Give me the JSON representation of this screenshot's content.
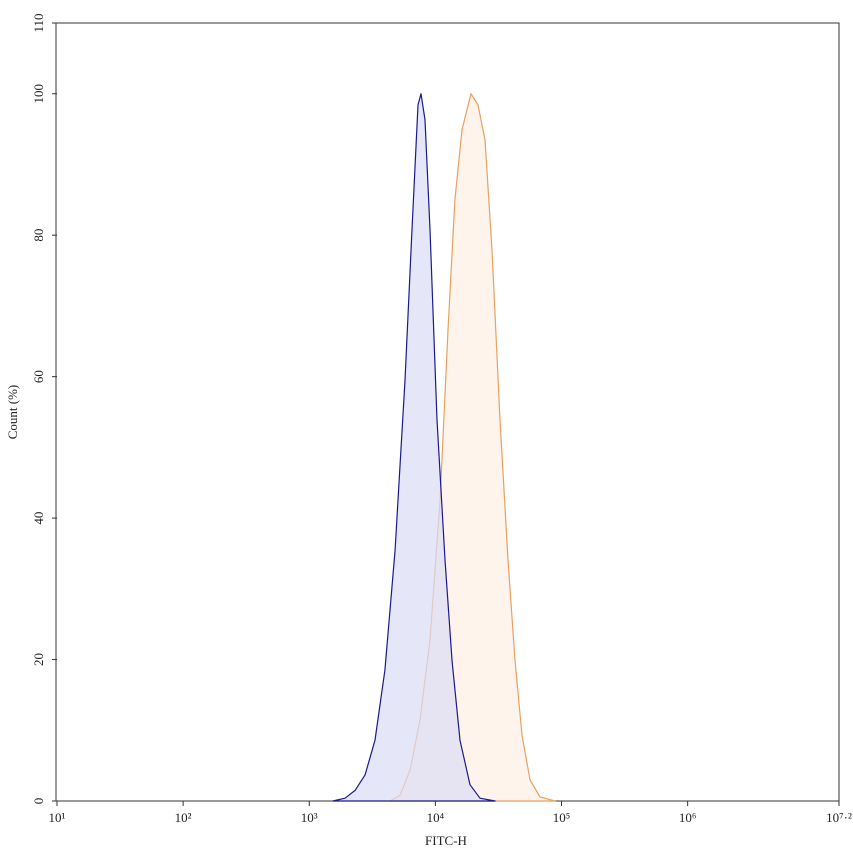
{
  "chart_data": {
    "type": "area",
    "xscale": "log",
    "x_label": "FITC-H",
    "y_label": "Count (%)",
    "xlim": [
      10,
      15848932
    ],
    "ylim": [
      0,
      110
    ],
    "xticks": [
      {
        "value": 10,
        "label": "10¹"
      },
      {
        "value": 100,
        "label": "10²"
      },
      {
        "value": 1000,
        "label": "10³"
      },
      {
        "value": 10000,
        "label": "10⁴"
      },
      {
        "value": 100000,
        "label": "10⁵"
      },
      {
        "value": 1000000,
        "label": "10⁶"
      },
      {
        "value": 15848932,
        "label": "10⁷·²"
      }
    ],
    "yticks": [
      0,
      20,
      40,
      60,
      80,
      100,
      110
    ],
    "series": [
      {
        "color": "#e8a060",
        "fill": "#fdf0e2",
        "x": [
          4370,
          5240,
          6300,
          7550,
          9060,
          10890,
          12590,
          14290,
          16250,
          19150,
          21780,
          24720,
          28110,
          32510,
          37670,
          42760,
          48620,
          56230,
          67450,
          88720
        ],
        "values": [
          0,
          0.8,
          4.4,
          11.5,
          22.8,
          42.6,
          66.6,
          85,
          94.9,
          100,
          98.4,
          93.5,
          77.9,
          53.9,
          34.1,
          19.9,
          9.3,
          3,
          0.6,
          0
        ]
      },
      {
        "color": "#1a1a8c",
        "fill": "#dcdcf7",
        "x": [
          1540,
          1920,
          2310,
          2770,
          3320,
          3980,
          4790,
          5740,
          6530,
          7280,
          7690,
          8280,
          9060,
          10300,
          11910,
          13550,
          15670,
          18800,
          22590,
          29720
        ],
        "values": [
          0,
          0.4,
          1.5,
          3.7,
          8.6,
          18.5,
          35.5,
          59.5,
          80.8,
          98.4,
          100,
          96.3,
          80.8,
          53.9,
          34.1,
          19.9,
          8.6,
          2.3,
          0.4,
          0
        ]
      }
    ]
  }
}
